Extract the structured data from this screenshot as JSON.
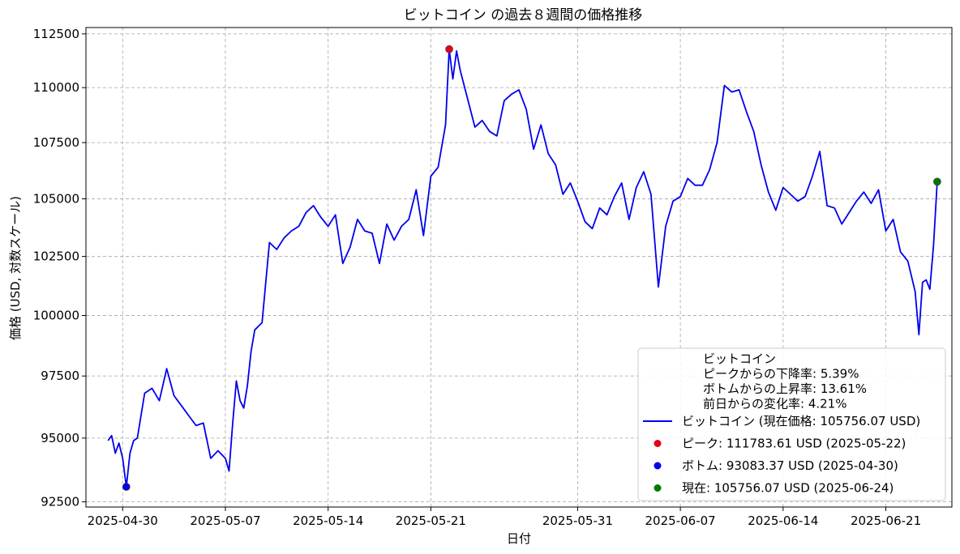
{
  "chart_data": {
    "type": "line",
    "title": "ビットコイン の過去８週間の価格推移",
    "xlabel": "日付",
    "ylabel": "価格 (USD, 対数スケール)",
    "y_scale": "log",
    "ylim": [
      92300,
      112800
    ],
    "xlim": [
      "2025-04-27T12:00",
      "2025-06-25T12:00"
    ],
    "grid": true,
    "grid_style": "dashed",
    "x_ticks": [
      "2025-04-30",
      "2025-05-07",
      "2025-05-14",
      "2025-05-21",
      "2025-05-31",
      "2025-06-07",
      "2025-06-14",
      "2025-06-21"
    ],
    "y_ticks": [
      92500,
      95000,
      97500,
      100000,
      102500,
      105000,
      107500,
      110000,
      112500
    ],
    "series": [
      {
        "name": "ビットコイン (現在価格: 105756.07 USD)",
        "color": "#0000ee",
        "x": [
          "2025-04-29T00:00",
          "2025-04-29T06:00",
          "2025-04-29T12:00",
          "2025-04-29T18:00",
          "2025-04-30T00:00",
          "2025-04-30T06:00",
          "2025-04-30T12:00",
          "2025-04-30T18:00",
          "2025-05-01T00:00",
          "2025-05-01T12:00",
          "2025-05-02T00:00",
          "2025-05-02T12:00",
          "2025-05-03T00:00",
          "2025-05-03T12:00",
          "2025-05-04T00:00",
          "2025-05-04T12:00",
          "2025-05-05T00:00",
          "2025-05-05T12:00",
          "2025-05-06T00:00",
          "2025-05-06T12:00",
          "2025-05-07T00:00",
          "2025-05-07T06:00",
          "2025-05-07T12:00",
          "2025-05-07T18:00",
          "2025-05-08T00:00",
          "2025-05-08T06:00",
          "2025-05-08T12:00",
          "2025-05-08T18:00",
          "2025-05-09T00:00",
          "2025-05-09T12:00",
          "2025-05-10T00:00",
          "2025-05-10T12:00",
          "2025-05-11T00:00",
          "2025-05-11T12:00",
          "2025-05-12T00:00",
          "2025-05-12T12:00",
          "2025-05-13T00:00",
          "2025-05-13T12:00",
          "2025-05-14T00:00",
          "2025-05-14T12:00",
          "2025-05-15T00:00",
          "2025-05-15T12:00",
          "2025-05-16T00:00",
          "2025-05-16T12:00",
          "2025-05-17T00:00",
          "2025-05-17T12:00",
          "2025-05-18T00:00",
          "2025-05-18T12:00",
          "2025-05-19T00:00",
          "2025-05-19T12:00",
          "2025-05-20T00:00",
          "2025-05-20T12:00",
          "2025-05-21T00:00",
          "2025-05-21T12:00",
          "2025-05-22T00:00",
          "2025-05-22T06:00",
          "2025-05-22T12:00",
          "2025-05-22T18:00",
          "2025-05-23T00:00",
          "2025-05-23T12:00",
          "2025-05-24T00:00",
          "2025-05-24T12:00",
          "2025-05-25T00:00",
          "2025-05-25T12:00",
          "2025-05-26T00:00",
          "2025-05-26T12:00",
          "2025-05-27T00:00",
          "2025-05-27T12:00",
          "2025-05-28T00:00",
          "2025-05-28T12:00",
          "2025-05-29T00:00",
          "2025-05-29T12:00",
          "2025-05-30T00:00",
          "2025-05-30T12:00",
          "2025-05-31T00:00",
          "2025-05-31T12:00",
          "2025-06-01T00:00",
          "2025-06-01T12:00",
          "2025-06-02T00:00",
          "2025-06-02T12:00",
          "2025-06-03T00:00",
          "2025-06-03T12:00",
          "2025-06-04T00:00",
          "2025-06-04T12:00",
          "2025-06-05T00:00",
          "2025-06-05T12:00",
          "2025-06-06T00:00",
          "2025-06-06T12:00",
          "2025-06-07T00:00",
          "2025-06-07T12:00",
          "2025-06-08T00:00",
          "2025-06-08T12:00",
          "2025-06-09T00:00",
          "2025-06-09T12:00",
          "2025-06-10T00:00",
          "2025-06-10T12:00",
          "2025-06-11T00:00",
          "2025-06-11T12:00",
          "2025-06-12T00:00",
          "2025-06-12T12:00",
          "2025-06-13T00:00",
          "2025-06-13T12:00",
          "2025-06-14T00:00",
          "2025-06-14T12:00",
          "2025-06-15T00:00",
          "2025-06-15T12:00",
          "2025-06-16T00:00",
          "2025-06-16T12:00",
          "2025-06-17T00:00",
          "2025-06-17T12:00",
          "2025-06-18T00:00",
          "2025-06-18T12:00",
          "2025-06-19T00:00",
          "2025-06-19T12:00",
          "2025-06-20T00:00",
          "2025-06-20T12:00",
          "2025-06-21T00:00",
          "2025-06-21T12:00",
          "2025-06-22T00:00",
          "2025-06-22T12:00",
          "2025-06-23T00:00",
          "2025-06-23T06:00",
          "2025-06-23T12:00",
          "2025-06-23T18:00",
          "2025-06-24T00:00",
          "2025-06-24T06:00",
          "2025-06-24T12:00"
        ],
        "values": [
          94900,
          95100,
          94400,
          94800,
          94200,
          93083.37,
          94400,
          94900,
          95000,
          96800,
          97000,
          96500,
          97800,
          96700,
          96300,
          95900,
          95500,
          95600,
          94200,
          94500,
          94200,
          93700,
          95600,
          97300,
          96500,
          96200,
          97100,
          98500,
          99400,
          99700,
          103100,
          102800,
          103300,
          103600,
          103800,
          104400,
          104700,
          104200,
          103800,
          104300,
          102200,
          102900,
          104100,
          103600,
          103500,
          102200,
          103900,
          103200,
          103800,
          104100,
          105400,
          103400,
          106000,
          106400,
          108300,
          111783.61,
          110400,
          111700,
          110800,
          109500,
          108200,
          108500,
          108000,
          107800,
          109400,
          109700,
          109900,
          109000,
          107200,
          108300,
          107000,
          106500,
          105200,
          105700,
          104900,
          104000,
          103700,
          104600,
          104300,
          105100,
          105700,
          104100,
          105500,
          106200,
          105200,
          101200,
          103800,
          104900,
          105100,
          105900,
          105600,
          105600,
          106300,
          107500,
          110100,
          109800,
          109900,
          108900,
          108000,
          106500,
          105300,
          104500,
          105500,
          105200,
          104900,
          105100,
          106000,
          107100,
          104700,
          104600,
          103900,
          104400,
          104900,
          105300,
          104800,
          105400,
          103600,
          104100,
          102700,
          102300,
          101000,
          99200,
          101400,
          101500,
          101100,
          103000,
          105756.07
        ]
      }
    ],
    "points": [
      {
        "label": "ピーク: 111783.61 USD (2025-05-22)",
        "date": "2025-05-22T06:00",
        "value": 111783.61,
        "color": "#e8001a"
      },
      {
        "label": "ボトム: 93083.37 USD (2025-04-30)",
        "date": "2025-04-30T06:00",
        "value": 93083.37,
        "color": "#0000ee"
      },
      {
        "label": "現在: 105756.07 USD (2025-06-24)",
        "date": "2025-06-24T12:00",
        "value": 105756.07,
        "color": "#007a00"
      }
    ],
    "legend": {
      "placement": "lower-right",
      "header_lines": [
        "ビットコイン",
        "ピークからの下降率: 5.39%",
        "ボトムからの上昇率: 13.61%",
        "前日からの変化率: 4.21%"
      ]
    }
  }
}
